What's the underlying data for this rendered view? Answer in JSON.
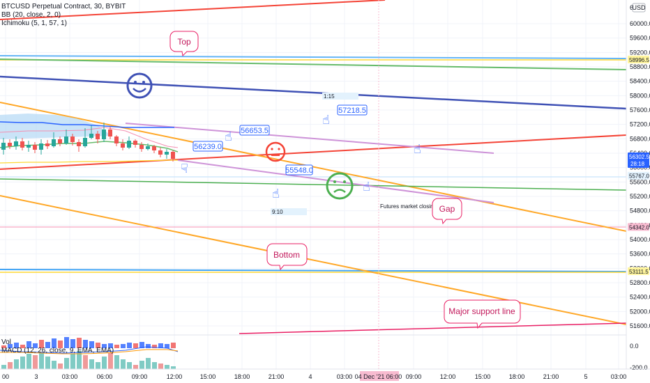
{
  "legend": {
    "symbol": "BTCUSD Perpetual Contract, 30, BYBIT",
    "bb": "BB (20, close, 2, 0)",
    "ichimoku": "Ichimoku (5, 1, 57, 1)",
    "vol": "Vol",
    "macd": "MACD (12, 26, close, 9, EMA, EMA)"
  },
  "currency": "USD",
  "chart_data": {
    "type": "line",
    "title": "BTCUSD Perpetual Contract, 30, BYBIT",
    "y_axis_ticks": [
      "60000.0",
      "59600.0",
      "59200.0",
      "58800.0",
      "58400.0",
      "58000.0",
      "57600.0",
      "57200.0",
      "56800.0",
      "56400.0",
      "56000.0",
      "55600.0",
      "55200.0",
      "54800.0",
      "54400.0",
      "54000.0",
      "53600.0",
      "53200.0",
      "52800.0",
      "52400.0",
      "52000.0",
      "51600.0"
    ],
    "y_axis_partial_top": "6",
    "ylim": [
      51500,
      60200
    ],
    "x_axis_ticks": [
      "00",
      "3",
      "03:00",
      "06:00",
      "09:00",
      "12:00",
      "15:00",
      "18:00",
      "21:00",
      "4",
      "03:00",
      "04 Dec '21",
      "06:00",
      "09:00",
      "12:00",
      "15:00",
      "18:00",
      "21:00",
      "5",
      "03:00"
    ],
    "crosshair_x_label": "04 Dec '21",
    "crosshair_time": "06:00",
    "price_tags": [
      {
        "value": "58996.5",
        "price": 58996.5,
        "color": "#fff59d"
      },
      {
        "value": "56302.5",
        "price": 56302.5,
        "color": "#2962ff",
        "extra": "28:18"
      },
      {
        "value": "55767.0",
        "price": 55767,
        "color": "#e3f2fd"
      },
      {
        "value": "54342.0",
        "price": 54342,
        "color": "#f8bbd0"
      },
      {
        "value": "53111.5",
        "price": 53111.5,
        "color": "#fff59d"
      }
    ],
    "price_callouts": [
      "56239.0",
      "56653.5",
      "57218.5",
      "55548.0"
    ],
    "time_notes": [
      "1:15",
      "9:10"
    ],
    "text_notes": [
      "Futures market closing"
    ],
    "bubbles": [
      "Top",
      "Gap",
      "Bottom",
      "Major support line"
    ],
    "macd_ticks": [
      "0.0",
      "-200.0"
    ],
    "grid": true,
    "colors": {
      "up": "#26a69a",
      "down": "#ef5350",
      "cloud": "#b3d9f5",
      "trend_red": "#f44336",
      "trend_orange": "#ffa726",
      "trend_green": "#4caf50",
      "trend_blue": "#3f51b5",
      "trend_violet": "#ce93d8",
      "bubble": "#e91e63"
    }
  }
}
